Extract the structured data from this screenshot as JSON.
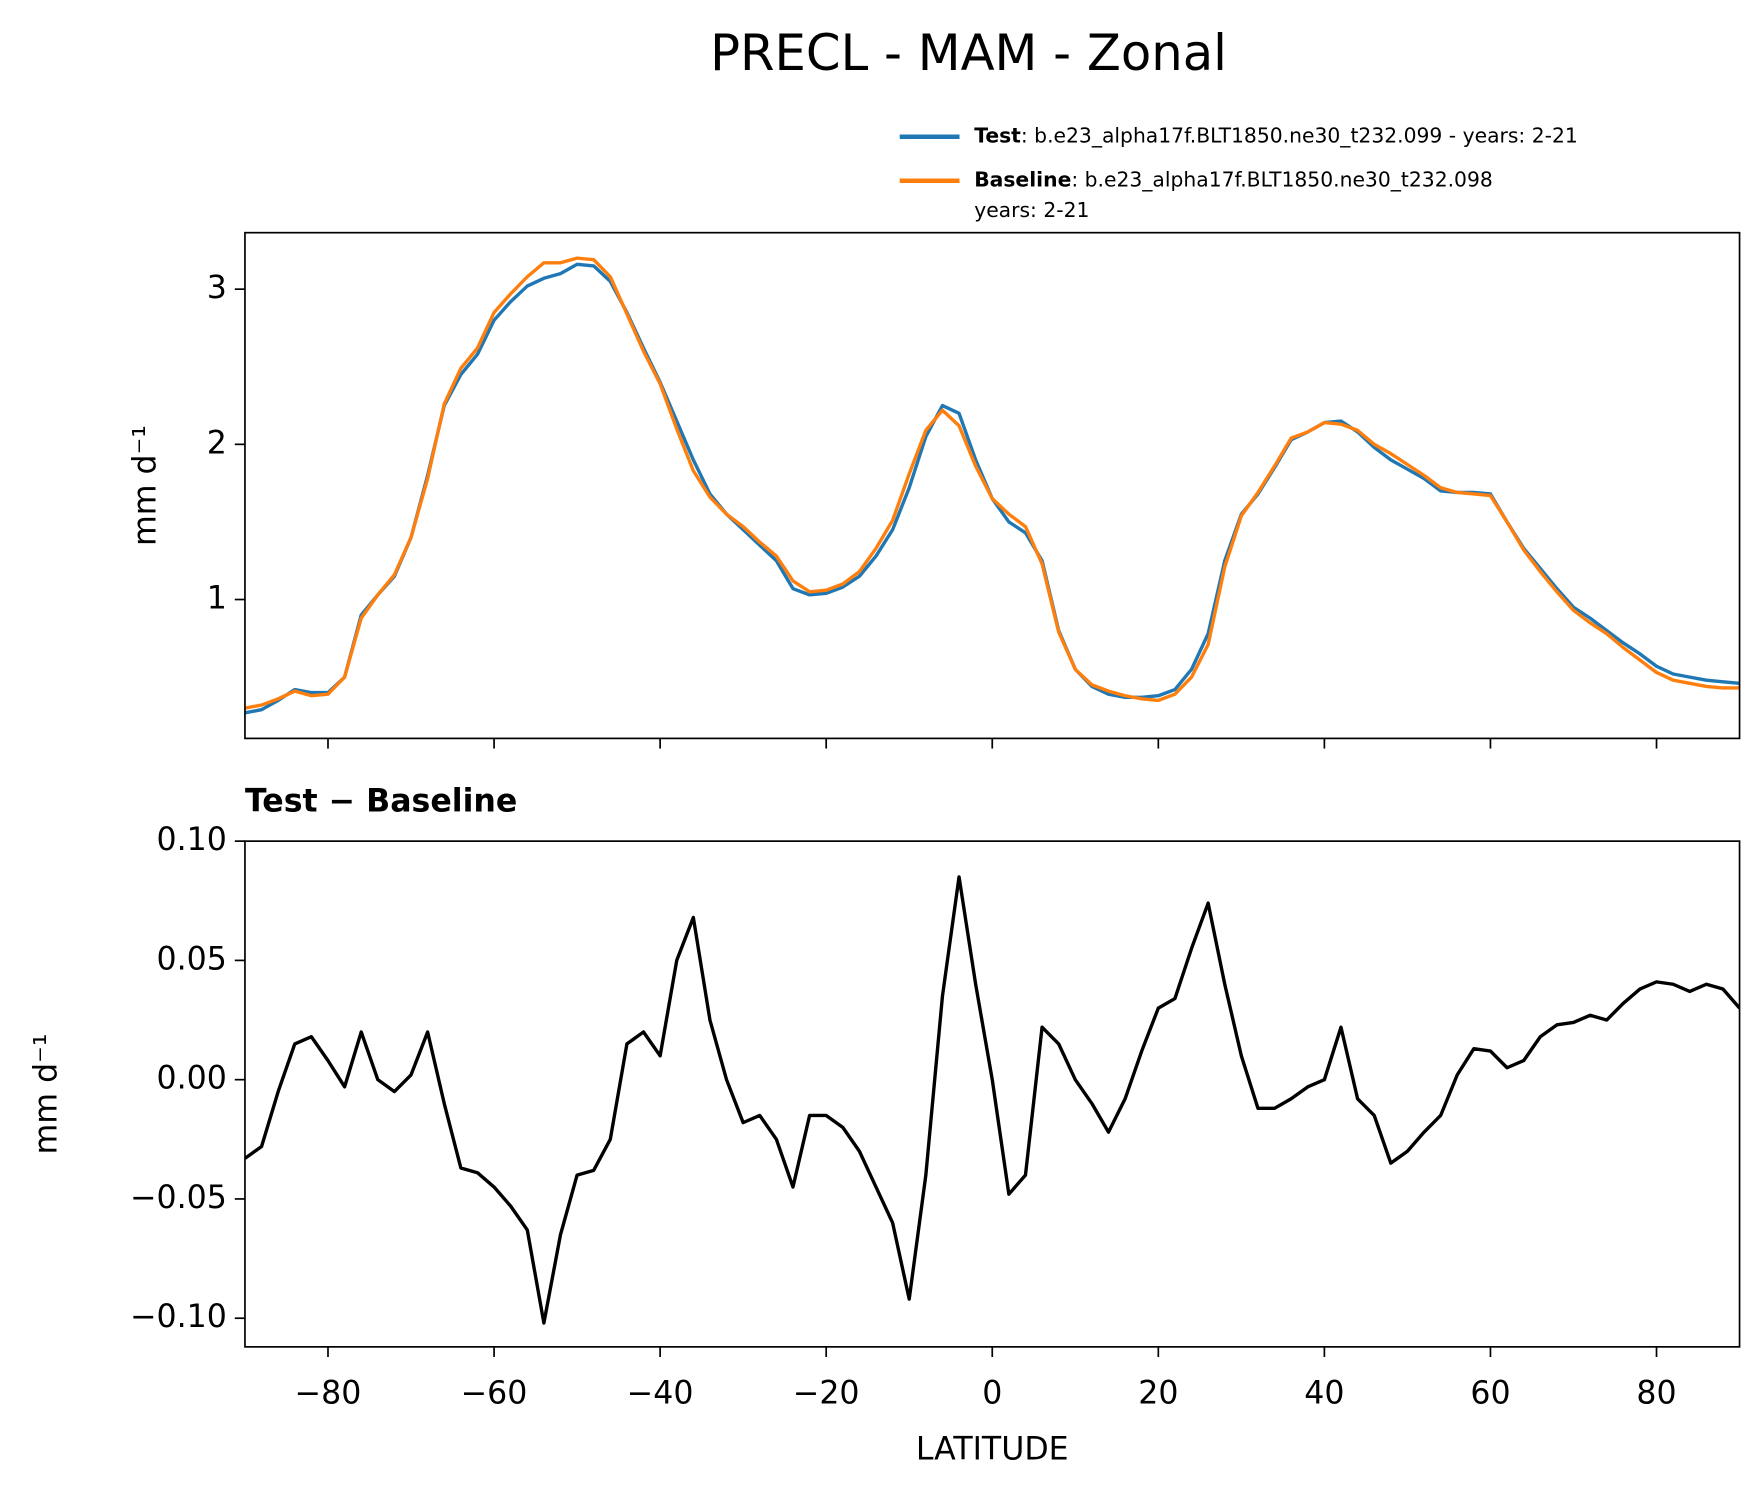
{
  "title": "PRECL - MAM - Zonal",
  "chart_data": [
    {
      "type": "line",
      "ylabel": "mm d⁻¹",
      "x": [
        -90,
        -88,
        -86,
        -84,
        -82,
        -80,
        -78,
        -76,
        -74,
        -72,
        -70,
        -68,
        -66,
        -64,
        -62,
        -60,
        -58,
        -56,
        -54,
        -52,
        -50,
        -48,
        -46,
        -44,
        -42,
        -40,
        -38,
        -36,
        -34,
        -32,
        -30,
        -28,
        -26,
        -24,
        -22,
        -20,
        -18,
        -16,
        -14,
        -12,
        -10,
        -8,
        -6,
        -4,
        -2,
        0,
        2,
        4,
        6,
        8,
        10,
        12,
        14,
        16,
        18,
        20,
        22,
        24,
        26,
        28,
        30,
        32,
        34,
        36,
        38,
        40,
        42,
        44,
        46,
        48,
        50,
        52,
        54,
        56,
        58,
        60,
        62,
        64,
        66,
        68,
        70,
        72,
        74,
        76,
        78,
        80,
        82,
        84,
        86,
        88,
        90
      ],
      "series": [
        {
          "name": "Test",
          "description": [
            ": b.e23_alpha17f.BLT1850.ne30_t232.099 - years: 2-21"
          ],
          "color": "#1f77b4",
          "values": [
            0.27,
            0.29,
            0.35,
            0.42,
            0.4,
            0.4,
            0.5,
            0.9,
            1.03,
            1.15,
            1.4,
            1.8,
            2.25,
            2.45,
            2.58,
            2.8,
            2.92,
            3.02,
            3.07,
            3.1,
            3.16,
            3.15,
            3.05,
            2.85,
            2.62,
            2.4,
            2.15,
            1.9,
            1.68,
            1.55,
            1.45,
            1.35,
            1.25,
            1.07,
            1.03,
            1.04,
            1.08,
            1.15,
            1.28,
            1.45,
            1.72,
            2.05,
            2.25,
            2.2,
            1.9,
            1.65,
            1.5,
            1.43,
            1.25,
            0.8,
            0.55,
            0.44,
            0.39,
            0.37,
            0.37,
            0.38,
            0.42,
            0.55,
            0.78,
            1.25,
            1.55,
            1.68,
            1.85,
            2.03,
            2.08,
            2.14,
            2.15,
            2.08,
            1.98,
            1.9,
            1.84,
            1.78,
            1.7,
            1.69,
            1.69,
            1.68,
            1.5,
            1.33,
            1.2,
            1.07,
            0.95,
            0.88,
            0.8,
            0.72,
            0.65,
            0.57,
            0.52,
            0.5,
            0.48,
            0.47,
            0.46
          ]
        },
        {
          "name": "Baseline",
          "description": [
            ": b.e23_alpha17f.BLT1850.ne30_t232.098",
            "years: 2-21"
          ],
          "color": "#ff7f0e",
          "values": [
            0.3,
            0.32,
            0.36,
            0.41,
            0.38,
            0.39,
            0.5,
            0.88,
            1.03,
            1.16,
            1.4,
            1.78,
            2.26,
            2.49,
            2.62,
            2.85,
            2.97,
            3.08,
            3.17,
            3.17,
            3.2,
            3.19,
            3.08,
            2.84,
            2.6,
            2.39,
            2.1,
            1.83,
            1.66,
            1.55,
            1.47,
            1.37,
            1.28,
            1.12,
            1.05,
            1.06,
            1.1,
            1.18,
            1.33,
            1.51,
            1.81,
            2.09,
            2.22,
            2.12,
            1.86,
            1.65,
            1.55,
            1.47,
            1.23,
            0.79,
            0.55,
            0.45,
            0.41,
            0.38,
            0.36,
            0.35,
            0.39,
            0.5,
            0.71,
            1.21,
            1.54,
            1.69,
            1.86,
            2.04,
            2.08,
            2.14,
            2.13,
            2.09,
            2.0,
            1.94,
            1.87,
            1.8,
            1.72,
            1.69,
            1.68,
            1.67,
            1.5,
            1.32,
            1.18,
            1.05,
            0.93,
            0.85,
            0.78,
            0.69,
            0.61,
            0.53,
            0.48,
            0.46,
            0.44,
            0.43,
            0.43
          ]
        }
      ],
      "xlim": [
        -90,
        90
      ],
      "xticks": [
        -80,
        -60,
        -40,
        -20,
        0,
        20,
        40,
        60,
        80
      ],
      "ylim": [
        0.105,
        3.364
      ],
      "yticks": [
        1,
        2,
        3
      ]
    },
    {
      "type": "line",
      "title": "Test − Baseline",
      "ylabel": "mm d⁻¹",
      "xlabel": "LATITUDE",
      "x": [
        -90,
        -88,
        -86,
        -84,
        -82,
        -80,
        -78,
        -76,
        -74,
        -72,
        -70,
        -68,
        -66,
        -64,
        -62,
        -60,
        -58,
        -56,
        -54,
        -52,
        -50,
        -48,
        -46,
        -44,
        -42,
        -40,
        -38,
        -36,
        -34,
        -32,
        -30,
        -28,
        -26,
        -24,
        -22,
        -20,
        -18,
        -16,
        -14,
        -12,
        -10,
        -8,
        -6,
        -4,
        -2,
        0,
        2,
        4,
        6,
        8,
        10,
        12,
        14,
        16,
        18,
        20,
        22,
        24,
        26,
        28,
        30,
        32,
        34,
        36,
        38,
        40,
        42,
        44,
        46,
        48,
        50,
        52,
        54,
        56,
        58,
        60,
        62,
        64,
        66,
        68,
        70,
        72,
        74,
        76,
        78,
        80,
        82,
        84,
        86,
        88,
        90
      ],
      "series": [
        {
          "color": "#000000",
          "values": [
            -0.033,
            -0.028,
            -0.005,
            0.015,
            0.018,
            0.008,
            -0.003,
            0.02,
            0.0,
            -0.005,
            0.002,
            0.02,
            -0.01,
            -0.037,
            -0.039,
            -0.045,
            -0.053,
            -0.063,
            -0.102,
            -0.065,
            -0.04,
            -0.038,
            -0.025,
            0.015,
            0.02,
            0.01,
            0.05,
            0.068,
            0.025,
            0.0,
            -0.018,
            -0.015,
            -0.025,
            -0.045,
            -0.015,
            -0.015,
            -0.02,
            -0.03,
            -0.045,
            -0.06,
            -0.092,
            -0.04,
            0.035,
            0.085,
            0.04,
            0.0,
            -0.048,
            -0.04,
            0.022,
            0.015,
            0.0,
            -0.01,
            -0.022,
            -0.008,
            0.012,
            0.03,
            0.034,
            0.055,
            0.074,
            0.04,
            0.01,
            -0.012,
            -0.012,
            -0.008,
            -0.003,
            0.0,
            0.022,
            -0.008,
            -0.015,
            -0.035,
            -0.03,
            -0.022,
            -0.015,
            0.002,
            0.013,
            0.012,
            0.005,
            0.008,
            0.018,
            0.023,
            0.024,
            0.027,
            0.025,
            0.032,
            0.038,
            0.041,
            0.04,
            0.037,
            0.04,
            0.038,
            0.03
          ]
        }
      ],
      "xlim": [
        -90,
        90
      ],
      "xticks": [
        {
          "value": -80,
          "label": "−80"
        },
        {
          "value": -60,
          "label": "−60"
        },
        {
          "value": -40,
          "label": "−40"
        },
        {
          "value": -20,
          "label": "−20"
        },
        0,
        20,
        40,
        60,
        80
      ],
      "ylim": [
        -0.112,
        0.1
      ],
      "yticks": [
        {
          "value": -0.1,
          "label": "−0.10"
        },
        {
          "value": -0.05,
          "label": "−0.05"
        },
        {
          "value": 0,
          "label": "0.00"
        },
        {
          "value": 0.05,
          "label": "0.05"
        },
        {
          "value": 0.1,
          "label": "0.10"
        }
      ]
    }
  ]
}
